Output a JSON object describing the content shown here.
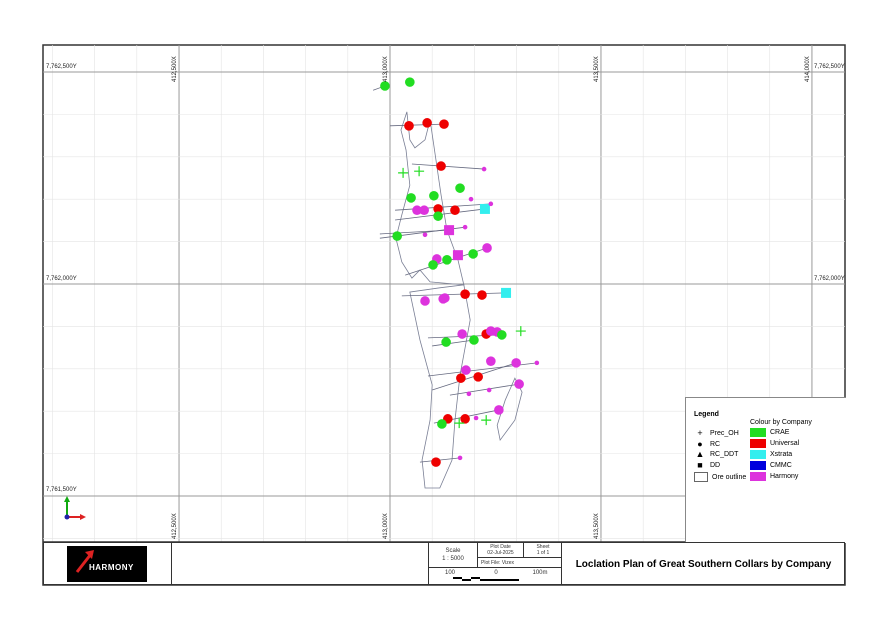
{
  "grid": {
    "x_labels_top": [
      "412,500X",
      "413,000X",
      "413,500X",
      "414,000X"
    ],
    "x_labels_bottom": [
      "412,500X",
      "413,000X",
      "413,500X"
    ],
    "y_labels_left": [
      "7,762,500Y",
      "7,762,000Y",
      "7,761,500Y"
    ],
    "y_labels_right": [
      "7,762,500Y",
      "7,762,000Y"
    ]
  },
  "legend": {
    "title": "Legend",
    "colour_title": "Colour by Company",
    "symbols": [
      {
        "icon": "plus-icon",
        "label": "Prec_OH"
      },
      {
        "icon": "dot-icon",
        "label": "RC"
      },
      {
        "icon": "triangle-icon",
        "label": "RC_DDT"
      },
      {
        "icon": "square-icon",
        "label": "DD"
      },
      {
        "icon": "outline-box-icon",
        "label": "Ore outline"
      }
    ],
    "companies": [
      {
        "label": "CRAE",
        "color": "#22dd22"
      },
      {
        "label": "Universal",
        "color": "#ee0000"
      },
      {
        "label": "Xstrata",
        "color": "#33eeee"
      },
      {
        "label": "CMMC",
        "color": "#0000dd"
      },
      {
        "label": "Harmony",
        "color": "#dd33dd"
      }
    ]
  },
  "title_block": {
    "logo_text": "HARMONY",
    "scale_label": "Scale",
    "scale_value": "1 : 5000",
    "plot_date_label": "Plot Date",
    "plot_date": "02-Jul-2025",
    "sheet_label": "Sheet",
    "sheet_value": "1 of 1",
    "plot_file": "Plot File: Vizex",
    "bar_left": "100",
    "bar_mid": "0",
    "bar_right": "100m",
    "title": "Loclation Plan of Great Southern Collars by Company"
  },
  "map": {
    "collars": [
      {
        "e": 412988,
        "n": 7762467,
        "type": "RC",
        "size": "large",
        "company": "CRAE"
      },
      {
        "e": 413047,
        "n": 7762476,
        "type": "RC",
        "size": "large",
        "company": "CRAE"
      },
      {
        "e": 413045,
        "n": 7762373,
        "type": "RC",
        "size": "large",
        "company": "Universal"
      },
      {
        "e": 413088,
        "n": 7762380,
        "type": "RC",
        "size": "large",
        "company": "Universal"
      },
      {
        "e": 413128,
        "n": 7762377,
        "type": "RC",
        "size": "large",
        "company": "Universal"
      },
      {
        "e": 413121,
        "n": 7762278,
        "type": "RC",
        "size": "large",
        "company": "Universal"
      },
      {
        "e": 413223,
        "n": 7762271,
        "type": "RC",
        "size": "small",
        "company": "Harmony"
      },
      {
        "e": 413031,
        "n": 7762262,
        "type": "Prec_OH",
        "company": "CRAE"
      },
      {
        "e": 413069,
        "n": 7762266,
        "type": "Prec_OH",
        "company": "CRAE"
      },
      {
        "e": 413166,
        "n": 7762226,
        "type": "RC",
        "size": "large",
        "company": "CRAE"
      },
      {
        "e": 413050,
        "n": 7762203,
        "type": "RC",
        "size": "large",
        "company": "CRAE"
      },
      {
        "e": 413104,
        "n": 7762208,
        "type": "RC",
        "size": "large",
        "company": "CRAE"
      },
      {
        "e": 413192,
        "n": 7762200,
        "type": "RC",
        "size": "small",
        "company": "Harmony"
      },
      {
        "e": 413064,
        "n": 7762174,
        "type": "RC",
        "size": "large",
        "company": "Harmony"
      },
      {
        "e": 413081,
        "n": 7762174,
        "type": "RC",
        "size": "large",
        "company": "Harmony"
      },
      {
        "e": 413114,
        "n": 7762177,
        "type": "RC",
        "size": "large",
        "company": "Universal"
      },
      {
        "e": 413154,
        "n": 7762174,
        "type": "RC",
        "size": "large",
        "company": "Universal"
      },
      {
        "e": 413225,
        "n": 7762177,
        "type": "DD",
        "company": "Xstrata"
      },
      {
        "e": 413239,
        "n": 7762189,
        "type": "RC",
        "size": "small",
        "company": "Harmony"
      },
      {
        "e": 413114,
        "n": 7762160,
        "type": "RC",
        "size": "large",
        "company": "CRAE"
      },
      {
        "e": 413140,
        "n": 7762127,
        "type": "DD",
        "company": "Harmony"
      },
      {
        "e": 413083,
        "n": 7762116,
        "type": "RC",
        "size": "small",
        "company": "Harmony"
      },
      {
        "e": 413178,
        "n": 7762134,
        "type": "RC",
        "size": "small",
        "company": "Harmony"
      },
      {
        "e": 413017,
        "n": 7762113,
        "type": "RC",
        "size": "large",
        "company": "CRAE"
      },
      {
        "e": 413230,
        "n": 7762085,
        "type": "RC",
        "size": "large",
        "company": "Harmony"
      },
      {
        "e": 413161,
        "n": 7762068,
        "type": "DD",
        "company": "Harmony"
      },
      {
        "e": 413197,
        "n": 7762071,
        "type": "RC",
        "size": "large",
        "company": "CRAE"
      },
      {
        "e": 413111,
        "n": 7762059,
        "type": "RC",
        "size": "large",
        "company": "Harmony"
      },
      {
        "e": 413135,
        "n": 7762057,
        "type": "RC",
        "size": "large",
        "company": "CRAE"
      },
      {
        "e": 413102,
        "n": 7762045,
        "type": "RC",
        "size": "large",
        "company": "CRAE"
      },
      {
        "e": 413083,
        "n": 7761960,
        "type": "RC",
        "size": "large",
        "company": "Harmony"
      },
      {
        "e": 413126,
        "n": 7761965,
        "type": "RC",
        "size": "large",
        "company": "Harmony"
      },
      {
        "e": 413130,
        "n": 7761967,
        "type": "RC",
        "size": "large",
        "company": "Harmony"
      },
      {
        "e": 413178,
        "n": 7761976,
        "type": "RC",
        "size": "large",
        "company": "Universal"
      },
      {
        "e": 413218,
        "n": 7761974,
        "type": "RC",
        "size": "large",
        "company": "Universal"
      },
      {
        "e": 413275,
        "n": 7761979,
        "type": "DD",
        "company": "Xstrata"
      },
      {
        "e": 413171,
        "n": 7761882,
        "type": "RC",
        "size": "large",
        "company": "Harmony"
      },
      {
        "e": 413228,
        "n": 7761882,
        "type": "RC",
        "size": "large",
        "company": "Universal"
      },
      {
        "e": 413239,
        "n": 7761889,
        "type": "RC",
        "size": "large",
        "company": "Harmony"
      },
      {
        "e": 413254,
        "n": 7761887,
        "type": "RC",
        "size": "large",
        "company": "Harmony"
      },
      {
        "e": 413265,
        "n": 7761880,
        "type": "RC",
        "size": "large",
        "company": "CRAE"
      },
      {
        "e": 413133,
        "n": 7761863,
        "type": "RC",
        "size": "large",
        "company": "CRAE"
      },
      {
        "e": 413199,
        "n": 7761868,
        "type": "RC",
        "size": "large",
        "company": "CRAE"
      },
      {
        "e": 413310,
        "n": 7761889,
        "type": "Prec_OH",
        "company": "CRAE"
      },
      {
        "e": 413239,
        "n": 7761818,
        "type": "RC",
        "size": "large",
        "company": "Harmony"
      },
      {
        "e": 413299,
        "n": 7761814,
        "type": "RC",
        "size": "large",
        "company": "Harmony"
      },
      {
        "e": 413348,
        "n": 7761814,
        "type": "RC",
        "size": "small",
        "company": "Harmony"
      },
      {
        "e": 413180,
        "n": 7761797,
        "type": "RC",
        "size": "large",
        "company": "Harmony"
      },
      {
        "e": 413168,
        "n": 7761778,
        "type": "RC",
        "size": "large",
        "company": "Universal"
      },
      {
        "e": 413209,
        "n": 7761781,
        "type": "RC",
        "size": "large",
        "company": "Universal"
      },
      {
        "e": 413306,
        "n": 7761764,
        "type": "RC",
        "size": "large",
        "company": "Harmony"
      },
      {
        "e": 413235,
        "n": 7761750,
        "type": "RC",
        "size": "small",
        "company": "Harmony"
      },
      {
        "e": 413187,
        "n": 7761741,
        "type": "RC",
        "size": "small",
        "company": "Harmony"
      },
      {
        "e": 413258,
        "n": 7761703,
        "type": "RC",
        "size": "large",
        "company": "Harmony"
      },
      {
        "e": 413137,
        "n": 7761682,
        "type": "RC",
        "size": "large",
        "company": "Universal"
      },
      {
        "e": 413178,
        "n": 7761682,
        "type": "RC",
        "size": "large",
        "company": "Universal"
      },
      {
        "e": 413204,
        "n": 7761684,
        "type": "RC",
        "size": "small",
        "company": "Harmony"
      },
      {
        "e": 413123,
        "n": 7761670,
        "type": "RC",
        "size": "large",
        "company": "CRAE"
      },
      {
        "e": 413164,
        "n": 7761672,
        "type": "Prec_OH",
        "company": "CRAE"
      },
      {
        "e": 413228,
        "n": 7761679,
        "type": "Prec_OH",
        "company": "CRAE"
      },
      {
        "e": 413109,
        "n": 7761580,
        "type": "RC",
        "size": "large",
        "company": "Universal"
      },
      {
        "e": 413166,
        "n": 7761590,
        "type": "RC",
        "size": "small",
        "company": "Harmony"
      }
    ],
    "traces": [
      [
        412960,
        7762457,
        412988,
        7762467
      ],
      [
        413000,
        7762373,
        413128,
        7762377
      ],
      [
        413052,
        7762283,
        413223,
        7762271
      ],
      [
        413012,
        7762174,
        413239,
        7762189
      ],
      [
        413012,
        7762151,
        413225,
        7762177
      ],
      [
        412976,
        7762108,
        413178,
        7762134
      ],
      [
        412976,
        7762118,
        413140,
        7762127
      ],
      [
        413036,
        7762021,
        413230,
        7762085
      ],
      [
        413028,
        7761972,
        413275,
        7761979
      ],
      [
        413090,
        7761873,
        413265,
        7761880
      ],
      [
        413100,
        7761854,
        413199,
        7761868
      ],
      [
        413090,
        7761783,
        413348,
        7761814
      ],
      [
        413100,
        7761750,
        413299,
        7761814
      ],
      [
        413142,
        7761738,
        413306,
        7761764
      ],
      [
        413104,
        7761672,
        413258,
        7761703
      ],
      [
        413071,
        7761580,
        413166,
        7761590
      ]
    ],
    "outlines": [
      [
        [
          413040,
          7762406
        ],
        [
          413026,
          7762363
        ],
        [
          413038,
          7762316
        ],
        [
          413047,
          7762233
        ],
        [
          413028,
          7762163
        ],
        [
          413014,
          7762108
        ],
        [
          413028,
          7762052
        ],
        [
          413052,
          7762014
        ],
        [
          413071,
          7762033
        ],
        [
          413095,
          7762005
        ],
        [
          413175,
          7761998
        ],
        [
          413161,
          7762057
        ],
        [
          413135,
          7762127
        ],
        [
          413121,
          7762210
        ],
        [
          413109,
          7762292
        ],
        [
          413095,
          7762387
        ],
        [
          413083,
          7762340
        ],
        [
          413059,
          7762321
        ],
        [
          413047,
          7762340
        ]
      ],
      [
        [
          413047,
          7761981
        ],
        [
          413118,
          7761991
        ],
        [
          413175,
          7761998
        ],
        [
          413190,
          7761915
        ],
        [
          413166,
          7761785
        ],
        [
          413154,
          7761679
        ],
        [
          413147,
          7761585
        ],
        [
          413118,
          7761519
        ],
        [
          413083,
          7761519
        ],
        [
          413076,
          7761585
        ],
        [
          413095,
          7761679
        ],
        [
          413100,
          7761762
        ],
        [
          413071,
          7761868
        ]
      ],
      [
        [
          413296,
          7761778
        ],
        [
          413313,
          7761745
        ],
        [
          413296,
          7761679
        ],
        [
          413261,
          7761632
        ],
        [
          413254,
          7761667
        ],
        [
          413273,
          7761726
        ]
      ]
    ]
  }
}
